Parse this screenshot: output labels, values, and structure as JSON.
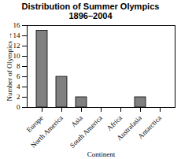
{
  "chart_data": {
    "type": "bar",
    "title": "Distribution of Summer Olympics",
    "subtitle": "1896–2004",
    "categories": [
      "Europe",
      "North America",
      "Asia",
      "South America",
      "Africa",
      "Australasia",
      "Antarctica"
    ],
    "values": [
      15,
      6,
      2,
      0,
      0,
      2,
      0
    ],
    "color": "#808080",
    "xlabel": "Continent",
    "ylabel": "Number of Olympics",
    "ylim": [
      0,
      16
    ],
    "yticks": [
      0,
      2,
      4,
      6,
      8,
      10,
      12,
      14,
      16
    ],
    "grid": false
  }
}
